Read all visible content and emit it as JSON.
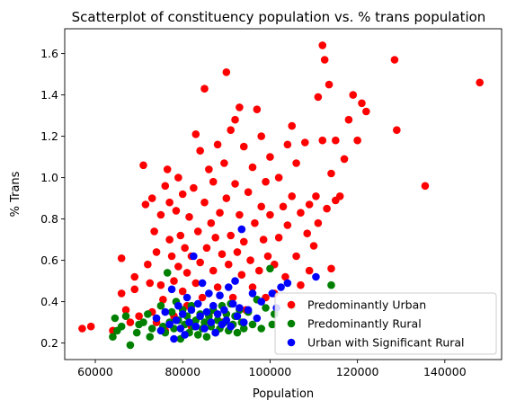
{
  "chart_data": {
    "type": "scatter",
    "title": "Scatterplot of constituency population vs. % trans population",
    "xlabel": "Population",
    "ylabel": "% Trans",
    "xlim": [
      53000,
      153000
    ],
    "ylim": [
      0.12,
      1.72
    ],
    "xticks": [
      60000,
      80000,
      100000,
      120000,
      140000
    ],
    "xtick_labels": [
      "60000",
      "80000",
      "100000",
      "120000",
      "140000"
    ],
    "yticks": [
      0.2,
      0.4,
      0.6,
      0.8,
      1.0,
      1.2,
      1.4,
      1.6
    ],
    "ytick_labels": [
      "0.2",
      "0.4",
      "0.6",
      "0.8",
      "1.0",
      "1.2",
      "1.4",
      "1.6"
    ],
    "grid": false,
    "legend_position": "bottom-right",
    "series": [
      {
        "name": "Predominantly Urban",
        "color": "#ff0000",
        "points": [
          [
            57000,
            0.27
          ],
          [
            59000,
            0.28
          ],
          [
            64000,
            0.26
          ],
          [
            66000,
            0.61
          ],
          [
            66000,
            0.44
          ],
          [
            67000,
            0.36
          ],
          [
            68000,
            0.3
          ],
          [
            69000,
            0.52
          ],
          [
            69000,
            0.46
          ],
          [
            70000,
            0.33
          ],
          [
            71000,
            1.06
          ],
          [
            71500,
            0.87
          ],
          [
            72000,
            0.58
          ],
          [
            72500,
            0.49
          ],
          [
            73000,
            0.9
          ],
          [
            73000,
            0.35
          ],
          [
            73500,
            0.74
          ],
          [
            74000,
            0.64
          ],
          [
            74000,
            0.3
          ],
          [
            75000,
            0.82
          ],
          [
            75000,
            0.48
          ],
          [
            75500,
            0.41
          ],
          [
            76000,
            0.96
          ],
          [
            76000,
            0.26
          ],
          [
            76500,
            1.04
          ],
          [
            77000,
            0.88
          ],
          [
            77000,
            0.7
          ],
          [
            77500,
            0.62
          ],
          [
            78000,
            0.5
          ],
          [
            78000,
            0.33
          ],
          [
            78500,
            0.84
          ],
          [
            79000,
            1.0
          ],
          [
            79000,
            0.57
          ],
          [
            79500,
            0.72
          ],
          [
            80000,
            0.92
          ],
          [
            80000,
            0.45
          ],
          [
            80500,
            0.66
          ],
          [
            81000,
            0.54
          ],
          [
            81000,
            0.38
          ],
          [
            81500,
            0.81
          ],
          [
            82000,
            0.62
          ],
          [
            82000,
            0.28
          ],
          [
            82500,
            0.95
          ],
          [
            83000,
            1.21
          ],
          [
            83000,
            0.49
          ],
          [
            83500,
            0.74
          ],
          [
            84000,
            1.13
          ],
          [
            84000,
            0.59
          ],
          [
            84500,
            0.42
          ],
          [
            85000,
            0.88
          ],
          [
            85000,
            1.43
          ],
          [
            85500,
            0.66
          ],
          [
            86000,
            1.04
          ],
          [
            86000,
            0.34
          ],
          [
            86500,
            0.78
          ],
          [
            87000,
            0.98
          ],
          [
            87000,
            0.55
          ],
          [
            87500,
            0.71
          ],
          [
            88000,
            1.16
          ],
          [
            88000,
            0.47
          ],
          [
            88500,
            0.83
          ],
          [
            89000,
            0.63
          ],
          [
            89000,
            0.3
          ],
          [
            89500,
            1.07
          ],
          [
            90000,
            1.51
          ],
          [
            90000,
            0.9
          ],
          [
            90500,
            0.58
          ],
          [
            91000,
            1.23
          ],
          [
            91000,
            0.72
          ],
          [
            91500,
            0.42
          ],
          [
            92000,
            1.28
          ],
          [
            92000,
            0.97
          ],
          [
            92500,
            0.64
          ],
          [
            93000,
            1.34
          ],
          [
            93000,
            0.82
          ],
          [
            93500,
            0.53
          ],
          [
            94000,
            1.15
          ],
          [
            94000,
            0.69
          ],
          [
            94500,
            0.36
          ],
          [
            95000,
            0.93
          ],
          [
            95500,
            0.6
          ],
          [
            96000,
            1.05
          ],
          [
            96000,
            0.47
          ],
          [
            96500,
            0.78
          ],
          [
            97000,
            1.33
          ],
          [
            97500,
            0.55
          ],
          [
            98000,
            1.2
          ],
          [
            98000,
            0.86
          ],
          [
            98500,
            0.7
          ],
          [
            99000,
            0.98
          ],
          [
            99000,
            0.42
          ],
          [
            99500,
            0.62
          ],
          [
            100000,
            1.1
          ],
          [
            100000,
            0.82
          ],
          [
            101000,
            0.58
          ],
          [
            101000,
            0.44
          ],
          [
            102000,
            1.0
          ],
          [
            102000,
            0.71
          ],
          [
            103000,
            0.86
          ],
          [
            103500,
            0.52
          ],
          [
            104000,
            1.16
          ],
          [
            104000,
            0.77
          ],
          [
            105000,
            1.25
          ],
          [
            105000,
            0.91
          ],
          [
            106000,
            1.07
          ],
          [
            106000,
            0.62
          ],
          [
            107000,
            0.83
          ],
          [
            107000,
            0.48
          ],
          [
            108000,
            1.17
          ],
          [
            108500,
            0.73
          ],
          [
            109000,
            0.87
          ],
          [
            109000,
            0.55
          ],
          [
            110000,
            0.67
          ],
          [
            110500,
            0.91
          ],
          [
            111000,
            1.39
          ],
          [
            111000,
            0.78
          ],
          [
            112000,
            1.64
          ],
          [
            112000,
            1.18
          ],
          [
            112500,
            1.57
          ],
          [
            113000,
            0.85
          ],
          [
            113500,
            1.45
          ],
          [
            114000,
            1.02
          ],
          [
            114000,
            0.56
          ],
          [
            115000,
            1.18
          ],
          [
            115000,
            0.89
          ],
          [
            116000,
            0.91
          ],
          [
            117000,
            1.09
          ],
          [
            118000,
            1.28
          ],
          [
            119000,
            1.4
          ],
          [
            120000,
            1.18
          ],
          [
            121000,
            1.36
          ],
          [
            122000,
            1.32
          ],
          [
            128500,
            1.57
          ],
          [
            129000,
            1.23
          ],
          [
            135500,
            0.96
          ],
          [
            148000,
            1.46
          ]
        ]
      },
      {
        "name": "Predominantly Rural",
        "color": "#008000",
        "points": [
          [
            64000,
            0.23
          ],
          [
            64500,
            0.32
          ],
          [
            65000,
            0.26
          ],
          [
            66000,
            0.28
          ],
          [
            67000,
            0.33
          ],
          [
            68000,
            0.19
          ],
          [
            69500,
            0.25
          ],
          [
            70000,
            0.29
          ],
          [
            71000,
            0.3
          ],
          [
            72000,
            0.34
          ],
          [
            72500,
            0.23
          ],
          [
            73000,
            0.27
          ],
          [
            74000,
            0.32
          ],
          [
            75000,
            0.38
          ],
          [
            75500,
            0.28
          ],
          [
            76000,
            0.25
          ],
          [
            76500,
            0.54
          ],
          [
            77000,
            0.3
          ],
          [
            77500,
            0.35
          ],
          [
            78000,
            0.27
          ],
          [
            78500,
            0.4
          ],
          [
            79000,
            0.31
          ],
          [
            79500,
            0.22
          ],
          [
            80000,
            0.36
          ],
          [
            80500,
            0.29
          ],
          [
            81000,
            0.33
          ],
          [
            81500,
            0.25
          ],
          [
            82000,
            0.38
          ],
          [
            82500,
            0.28
          ],
          [
            83000,
            0.31
          ],
          [
            83500,
            0.24
          ],
          [
            84000,
            0.34
          ],
          [
            84500,
            0.27
          ],
          [
            85000,
            0.3
          ],
          [
            85500,
            0.23
          ],
          [
            86000,
            0.33
          ],
          [
            86500,
            0.28
          ],
          [
            87000,
            0.36
          ],
          [
            87500,
            0.25
          ],
          [
            88000,
            0.31
          ],
          [
            88500,
            0.27
          ],
          [
            89000,
            0.38
          ],
          [
            89500,
            0.3
          ],
          [
            90000,
            0.34
          ],
          [
            90500,
            0.26
          ],
          [
            91000,
            0.39
          ],
          [
            91500,
            0.29
          ],
          [
            92000,
            0.33
          ],
          [
            92500,
            0.25
          ],
          [
            93000,
            0.36
          ],
          [
            93500,
            0.3
          ],
          [
            94000,
            0.27
          ],
          [
            95000,
            0.35
          ],
          [
            96000,
            0.29
          ],
          [
            97000,
            0.41
          ],
          [
            98000,
            0.27
          ],
          [
            99000,
            0.37
          ],
          [
            100000,
            0.56
          ],
          [
            100500,
            0.29
          ],
          [
            101000,
            0.34
          ],
          [
            105000,
            0.38
          ],
          [
            114000,
            0.48
          ]
        ]
      },
      {
        "name": "Urban with Significant Rural",
        "color": "#0000ff",
        "points": [
          [
            74000,
            0.32
          ],
          [
            75000,
            0.26
          ],
          [
            76000,
            0.35
          ],
          [
            77000,
            0.29
          ],
          [
            77500,
            0.46
          ],
          [
            78000,
            0.22
          ],
          [
            78500,
            0.31
          ],
          [
            79000,
            0.38
          ],
          [
            79500,
            0.27
          ],
          [
            80000,
            0.34
          ],
          [
            80500,
            0.24
          ],
          [
            81000,
            0.42
          ],
          [
            81500,
            0.3
          ],
          [
            82000,
            0.36
          ],
          [
            82500,
            0.62
          ],
          [
            83000,
            0.28
          ],
          [
            83500,
            0.39
          ],
          [
            84000,
            0.33
          ],
          [
            84500,
            0.49
          ],
          [
            85000,
            0.27
          ],
          [
            85500,
            0.35
          ],
          [
            86000,
            0.44
          ],
          [
            86500,
            0.3
          ],
          [
            87000,
            0.38
          ],
          [
            87500,
            0.25
          ],
          [
            88000,
            0.34
          ],
          [
            88500,
            0.43
          ],
          [
            89000,
            0.29
          ],
          [
            89500,
            0.36
          ],
          [
            90000,
            0.31
          ],
          [
            90500,
            0.47
          ],
          [
            91000,
            0.28
          ],
          [
            91500,
            0.39
          ],
          [
            92000,
            0.5
          ],
          [
            92500,
            0.33
          ],
          [
            93000,
            0.37
          ],
          [
            93500,
            0.75
          ],
          [
            94000,
            0.3
          ],
          [
            95000,
            0.36
          ],
          [
            96000,
            0.44
          ],
          [
            97000,
            0.32
          ],
          [
            98000,
            0.4
          ],
          [
            100500,
            0.44
          ],
          [
            101500,
            0.37
          ],
          [
            102500,
            0.47
          ],
          [
            104000,
            0.49
          ],
          [
            110500,
            0.52
          ]
        ]
      }
    ]
  }
}
